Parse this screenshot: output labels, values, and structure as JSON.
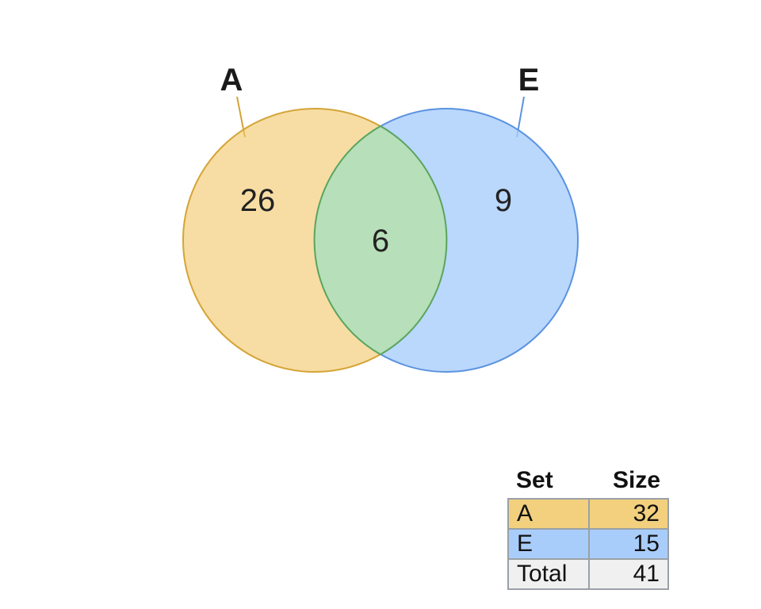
{
  "sets": [
    {
      "id": "A",
      "label": "A",
      "fill": "#f2c765",
      "stroke": "#d4a437",
      "label_line": "#d4a437"
    },
    {
      "id": "E",
      "label": "E",
      "fill": "#a9cdfb",
      "stroke": "#5b93e0",
      "label_line": "#5b93e0"
    }
  ],
  "regions": {
    "only_A": "26",
    "A_and_E": "6",
    "only_E": "9"
  },
  "overlap_fill": "#b7dfb9",
  "overlap_stroke": "#5aa55f",
  "table": {
    "headers": {
      "set": "Set",
      "size": "Size"
    },
    "rows": [
      {
        "set": "A",
        "size": "32",
        "color": "#f2d07e"
      },
      {
        "set": "E",
        "size": "15",
        "color": "#a9cdfb"
      },
      {
        "set": "Total",
        "size": "41",
        "color": "#f0f0f0"
      }
    ]
  }
}
